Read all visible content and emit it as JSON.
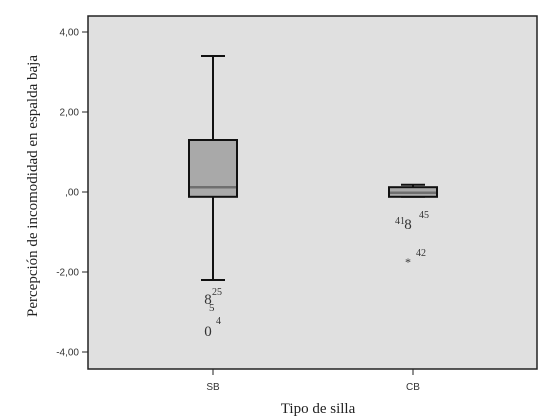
{
  "chart_data": {
    "type": "boxplot",
    "xlabel": "Tipo de silla",
    "ylabel": "Percepción de incomodidad en espalda baja",
    "ylim": [
      -4.5,
      4.4
    ],
    "yticks": [
      {
        "value": 4,
        "label": "4,00"
      },
      {
        "value": 2,
        "label": "2,00"
      },
      {
        "value": 0,
        "label": ",00"
      },
      {
        "value": -2,
        "label": "-2,00"
      },
      {
        "value": -4,
        "label": "-4,00"
      }
    ],
    "categories": [
      "SB",
      "CB"
    ],
    "boxes": [
      {
        "category": "SB",
        "whisker_low": -2.2,
        "q1": -0.12,
        "median": 0.12,
        "q3": 1.3,
        "whisker_high": 3.4
      },
      {
        "category": "CB",
        "whisker_low": -0.12,
        "q1": -0.12,
        "median": -0.02,
        "q3": 0.12,
        "whisker_high": 0.18
      }
    ],
    "outliers": [
      {
        "category": "SB",
        "value": -2.65,
        "symbol": "8",
        "labels": [
          "25",
          "5"
        ]
      },
      {
        "category": "SB",
        "value": -3.45,
        "symbol": "0",
        "labels": [
          "4"
        ]
      },
      {
        "category": "CB",
        "value": -0.78,
        "symbol": "8",
        "labels": [
          "41",
          "45"
        ]
      },
      {
        "category": "CB",
        "value": -1.6,
        "symbol": "*",
        "labels": [
          "42"
        ]
      }
    ],
    "colors": {
      "plot_background": "#e0e0e0",
      "box_fill": "#a9a9a9",
      "median": "#6f6f6f"
    }
  }
}
